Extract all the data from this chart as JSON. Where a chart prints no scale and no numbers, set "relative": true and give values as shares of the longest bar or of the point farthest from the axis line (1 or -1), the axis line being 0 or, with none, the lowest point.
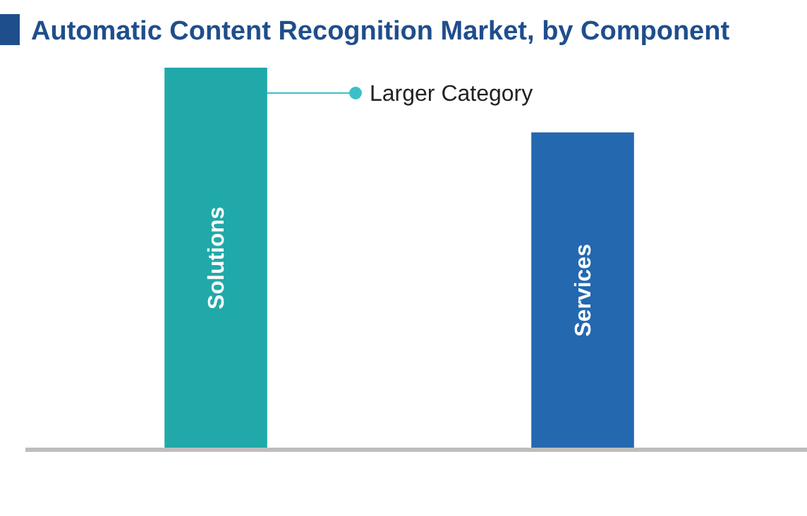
{
  "chart_data": {
    "type": "bar",
    "title": "Automatic Content Recognition Market, by Component",
    "categories": [
      "Solutions",
      "Services"
    ],
    "values": [
      1,
      0.83
    ],
    "relative": true,
    "colors": [
      "#21a9a9",
      "#2468b0"
    ],
    "annotations": [
      "Larger Category"
    ]
  }
}
